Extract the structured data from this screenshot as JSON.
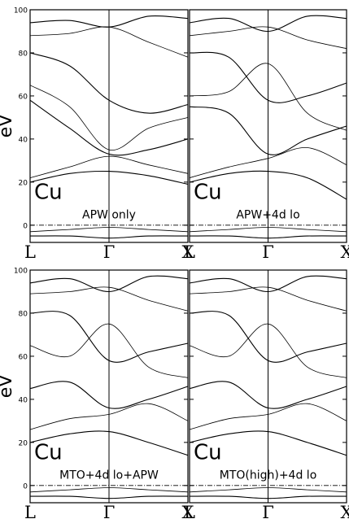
{
  "chart_data": [
    {
      "type": "line",
      "ylabel": "eV",
      "element": "Cu",
      "method": "APW only",
      "ylim": [
        -8,
        100
      ],
      "yticks": [
        0,
        20,
        40,
        60,
        80,
        100
      ],
      "kpath": [
        "L",
        "Γ",
        "X"
      ],
      "series": [
        {
          "values": [
            -5,
            -5,
            -6,
            -5,
            -5
          ]
        },
        {
          "values": [
            -3,
            -2,
            -1,
            -2,
            -3
          ]
        },
        {
          "values": [
            20,
            24,
            25,
            23,
            19
          ]
        },
        {
          "values": [
            22,
            27,
            32,
            28,
            24
          ]
        },
        {
          "values": [
            58,
            45,
            33,
            35,
            40
          ]
        },
        {
          "values": [
            65,
            55,
            35,
            45,
            50
          ]
        },
        {
          "values": [
            80,
            74,
            58,
            52,
            56
          ]
        },
        {
          "values": [
            88,
            89,
            92,
            85,
            78
          ]
        },
        {
          "values": [
            94,
            95,
            92,
            97,
            96
          ]
        }
      ]
    },
    {
      "type": "line",
      "element": "Cu",
      "method": "APW+4d lo",
      "ylim": [
        -8,
        100
      ],
      "yticks": [
        0,
        20,
        40,
        60,
        80,
        100
      ],
      "kpath": [
        "L",
        "Γ",
        "X"
      ],
      "series": [
        {
          "values": [
            -5,
            -5,
            -6,
            -5,
            -5
          ]
        },
        {
          "values": [
            -3,
            -2,
            -1,
            -2,
            -3
          ]
        },
        {
          "values": [
            20,
            24,
            25,
            22,
            12
          ]
        },
        {
          "values": [
            22,
            27,
            31,
            36,
            28
          ]
        },
        {
          "values": [
            55,
            52,
            33,
            40,
            46
          ]
        },
        {
          "values": [
            60,
            62,
            75,
            52,
            44
          ]
        },
        {
          "values": [
            80,
            78,
            58,
            60,
            66
          ]
        },
        {
          "values": [
            88,
            90,
            92,
            86,
            82
          ]
        },
        {
          "values": [
            94,
            96,
            90,
            97,
            96
          ]
        }
      ]
    },
    {
      "type": "line",
      "ylabel": "eV",
      "element": "Cu",
      "method": "MTO+4d lo+APW",
      "ylim": [
        -8,
        100
      ],
      "yticks": [
        0,
        20,
        40,
        60,
        80,
        100
      ],
      "kpath": [
        "L",
        "Γ",
        "X"
      ],
      "series": [
        {
          "values": [
            -5,
            -5,
            -6,
            -5,
            -5
          ]
        },
        {
          "values": [
            -3,
            -2,
            -1,
            -2,
            -3
          ]
        },
        {
          "values": [
            20,
            24,
            25,
            20,
            14
          ]
        },
        {
          "values": [
            26,
            31,
            33,
            38,
            30
          ]
        },
        {
          "values": [
            45,
            48,
            36,
            40,
            46
          ]
        },
        {
          "values": [
            65,
            60,
            75,
            55,
            50
          ]
        },
        {
          "values": [
            80,
            79,
            58,
            62,
            66
          ]
        },
        {
          "values": [
            89,
            90,
            92,
            86,
            81
          ]
        },
        {
          "values": [
            94,
            96,
            90,
            97,
            96
          ]
        }
      ]
    },
    {
      "type": "line",
      "element": "Cu",
      "method": "MTO(high)+4d lo",
      "ylim": [
        -8,
        100
      ],
      "yticks": [
        0,
        20,
        40,
        60,
        80,
        100
      ],
      "kpath": [
        "L",
        "Γ",
        "X"
      ],
      "series": [
        {
          "values": [
            -5,
            -5,
            -6,
            -5,
            -5
          ]
        },
        {
          "values": [
            -3,
            -2,
            -1,
            -2,
            -3
          ]
        },
        {
          "values": [
            20,
            24,
            25,
            20,
            14
          ]
        },
        {
          "values": [
            26,
            31,
            33,
            38,
            30
          ]
        },
        {
          "values": [
            45,
            48,
            36,
            40,
            46
          ]
        },
        {
          "values": [
            65,
            60,
            75,
            55,
            50
          ]
        },
        {
          "values": [
            80,
            79,
            58,
            62,
            66
          ]
        },
        {
          "values": [
            89,
            90,
            92,
            86,
            81
          ]
        },
        {
          "values": [
            94,
            96,
            90,
            97,
            96
          ]
        }
      ]
    }
  ]
}
